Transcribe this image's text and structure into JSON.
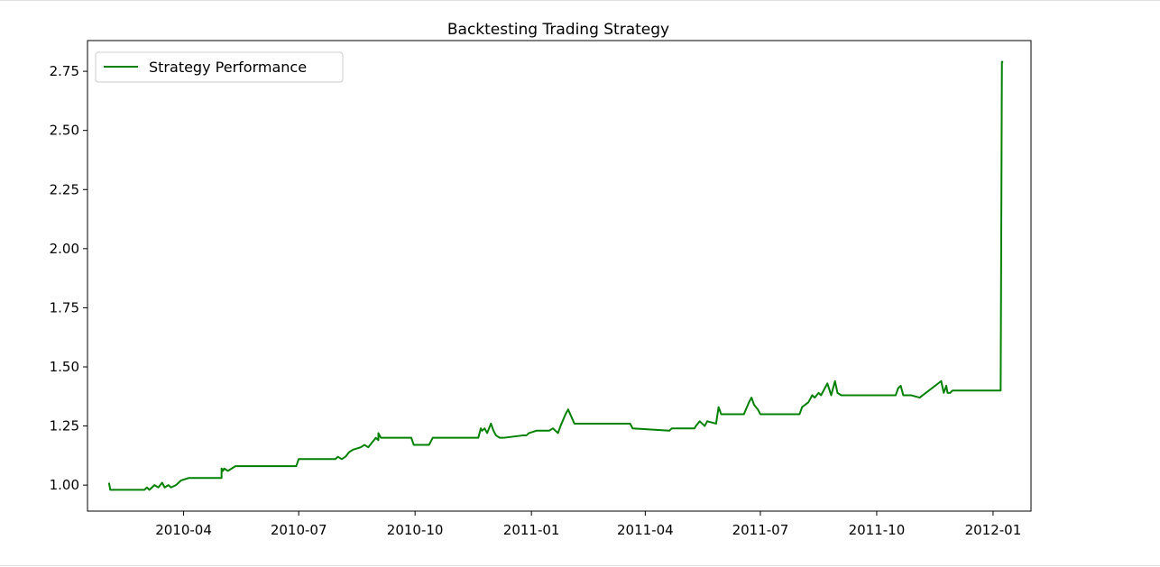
{
  "chart_data": {
    "type": "line",
    "title": "Backtesting Trading Strategy",
    "xlabel": "",
    "ylabel": "",
    "x_tick_labels": [
      "2010-04",
      "2010-07",
      "2010-10",
      "2011-01",
      "2011-04",
      "2011-07",
      "2011-10",
      "2012-01"
    ],
    "y_tick_labels": [
      "1.00",
      "1.25",
      "1.50",
      "1.75",
      "2.00",
      "2.25",
      "2.50",
      "2.75"
    ],
    "y_ticks": [
      1.0,
      1.25,
      1.5,
      1.75,
      2.0,
      2.25,
      2.5,
      2.75
    ],
    "xlim": [
      "2010-01-15",
      "2012-01-31"
    ],
    "ylim": [
      0.89,
      2.88
    ],
    "grid": false,
    "legend": {
      "position": "top-left",
      "entries": [
        "Strategy Performance"
      ]
    },
    "series": [
      {
        "name": "Strategy Performance",
        "color": "#008000",
        "x": [
          "2010-02-01",
          "2010-02-02",
          "2010-03-01",
          "2010-03-03",
          "2010-03-05",
          "2010-03-07",
          "2010-03-09",
          "2010-03-12",
          "2010-03-15",
          "2010-03-17",
          "2010-03-20",
          "2010-03-22",
          "2010-03-26",
          "2010-03-30",
          "2010-04-05",
          "2010-04-12",
          "2010-05-01",
          "2010-05-01",
          "2010-05-02",
          "2010-05-03",
          "2010-05-06",
          "2010-05-09",
          "2010-05-12",
          "2010-06-01",
          "2010-06-20",
          "2010-06-29",
          "2010-07-01",
          "2010-07-30",
          "2010-08-01",
          "2010-08-04",
          "2010-08-07",
          "2010-08-10",
          "2010-08-13",
          "2010-08-19",
          "2010-08-22",
          "2010-08-25",
          "2010-08-28",
          "2010-08-31",
          "2010-09-02",
          "2010-09-02",
          "2010-09-04",
          "2010-09-06",
          "2010-09-28",
          "2010-09-30",
          "2010-10-10",
          "2010-10-12",
          "2010-10-15",
          "2010-11-20",
          "2010-11-22",
          "2010-11-23",
          "2010-11-25",
          "2010-11-27",
          "2010-11-30",
          "2010-12-02",
          "2010-12-04",
          "2010-12-07",
          "2010-12-10",
          "2010-12-25",
          "2010-12-28",
          "2010-12-30",
          "2011-01-05",
          "2011-01-15",
          "2011-01-18",
          "2011-01-22",
          "2011-01-24",
          "2011-01-28",
          "2011-01-30",
          "2011-02-04",
          "2011-03-01",
          "2011-03-20",
          "2011-03-22",
          "2011-04-20",
          "2011-04-22",
          "2011-05-10",
          "2011-05-11",
          "2011-05-14",
          "2011-05-16",
          "2011-05-18",
          "2011-05-20",
          "2011-05-27",
          "2011-05-29",
          "2011-05-31",
          "2011-06-01",
          "2011-06-05",
          "2011-06-18",
          "2011-06-22",
          "2011-06-24",
          "2011-06-26",
          "2011-06-29",
          "2011-07-01",
          "2011-07-10",
          "2011-08-01",
          "2011-08-03",
          "2011-08-08",
          "2011-08-11",
          "2011-08-13",
          "2011-08-16",
          "2011-08-18",
          "2011-08-20",
          "2011-08-23",
          "2011-08-26",
          "2011-08-29",
          "2011-08-31",
          "2011-09-03",
          "2011-09-06",
          "2011-10-01",
          "2011-10-16",
          "2011-10-18",
          "2011-10-20",
          "2011-10-22",
          "2011-10-26",
          "2011-10-28",
          "2011-11-04",
          "2011-11-21",
          "2011-11-23",
          "2011-11-25",
          "2011-11-26",
          "2011-11-28",
          "2011-11-30",
          "2011-12-02",
          "2012-01-07",
          "2012-01-08",
          "2012-01-09"
        ],
        "y": [
          1.01,
          0.98,
          0.98,
          0.99,
          0.98,
          0.99,
          1.0,
          0.99,
          1.01,
          0.99,
          1.0,
          0.99,
          1.0,
          1.02,
          1.03,
          1.03,
          1.03,
          1.07,
          1.06,
          1.07,
          1.06,
          1.07,
          1.08,
          1.08,
          1.08,
          1.08,
          1.11,
          1.11,
          1.12,
          1.11,
          1.12,
          1.14,
          1.15,
          1.16,
          1.17,
          1.16,
          1.18,
          1.2,
          1.19,
          1.22,
          1.2,
          1.2,
          1.2,
          1.17,
          1.17,
          1.17,
          1.2,
          1.2,
          1.24,
          1.23,
          1.24,
          1.22,
          1.26,
          1.23,
          1.21,
          1.2,
          1.2,
          1.21,
          1.21,
          1.22,
          1.23,
          1.23,
          1.24,
          1.22,
          1.25,
          1.3,
          1.32,
          1.26,
          1.26,
          1.26,
          1.24,
          1.23,
          1.24,
          1.24,
          1.25,
          1.27,
          1.26,
          1.25,
          1.27,
          1.26,
          1.33,
          1.3,
          1.3,
          1.3,
          1.3,
          1.35,
          1.37,
          1.34,
          1.32,
          1.3,
          1.3,
          1.3,
          1.33,
          1.35,
          1.38,
          1.37,
          1.39,
          1.38,
          1.4,
          1.43,
          1.38,
          1.44,
          1.39,
          1.38,
          1.38,
          1.38,
          1.38,
          1.41,
          1.42,
          1.38,
          1.38,
          1.38,
          1.37,
          1.44,
          1.39,
          1.42,
          1.39,
          1.39,
          1.4,
          1.4,
          1.4,
          2.79,
          2.79
        ]
      }
    ]
  }
}
